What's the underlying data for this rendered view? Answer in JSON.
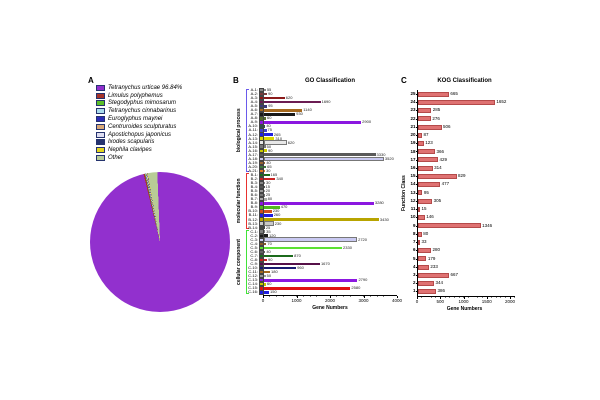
{
  "figure": {
    "background": "#ffffff"
  },
  "chart_data": [
    {
      "id": "species-distribution-pie",
      "type": "pie",
      "panel_label": "A",
      "legend_position": "top-left",
      "slices": [
        {
          "label": "Tetranychus urticae 96.84%",
          "pct_label": "96.84%",
          "color": "#9230CE",
          "deg": 346.4
        },
        {
          "label": "Limulus polyphemus",
          "color": "#A5342A",
          "deg": 1.1
        },
        {
          "label": "Stegodyphus mimosarum",
          "color": "#5BBF28",
          "deg": 0.4
        },
        {
          "label": "Tetranychus cinnabarinus",
          "color": "#ABDCED",
          "deg": 0.3
        },
        {
          "label": "Euroglyphus maynei",
          "color": "#2B2BB5",
          "deg": 0.3
        },
        {
          "label": "Centruroides sculpturatus",
          "color": "#D8A878",
          "deg": 0.5
        },
        {
          "label": "Apostichopus japonicus",
          "color": "#DEDEF2",
          "deg": 0.3
        },
        {
          "label": "Ixodes scapularis",
          "color": "#25336E",
          "deg": 0.3
        },
        {
          "label": "Nephila clavipes",
          "color": "#E3D61C",
          "deg": 0.3
        },
        {
          "label": "Other",
          "color": "#B8CC96",
          "deg": 7.9
        }
      ]
    },
    {
      "id": "go-classification",
      "type": "bar",
      "orientation": "horizontal",
      "panel_label": "B",
      "title": "GO Classification",
      "xlabel": "Gene Numbers",
      "xlim": [
        0,
        4000
      ],
      "xticks": [
        0,
        1000,
        2000,
        3000,
        4000
      ],
      "groups": [
        {
          "name": "biological process",
          "bracket_color": "#6A5AEB",
          "terms": [
            {
              "label": "A-1",
              "value": 55,
              "color": "#8A8A8A"
            },
            {
              "label": "A-2",
              "value": 90,
              "color": "#7A3B3B"
            },
            {
              "label": "A-3",
              "value": 620,
              "color": "#8B1A1A"
            },
            {
              "label": "A-4",
              "value": 1690,
              "color": "#6B1C52"
            },
            {
              "label": "A-5",
              "value": 95,
              "color": "#3B3B7A"
            },
            {
              "label": "A-6",
              "value": 1140,
              "color": "#A5691E"
            },
            {
              "label": "A-7",
              "value": 930,
              "color": "#1A1A1A"
            },
            {
              "label": "A-8",
              "value": 60,
              "color": "#556B2F"
            },
            {
              "label": "A-9",
              "value": 2900,
              "color": "#8B17E0"
            },
            {
              "label": "A-10",
              "value": 40,
              "color": "#2F4F4F"
            },
            {
              "label": "A-11",
              "value": 75,
              "color": "#4444CC"
            },
            {
              "label": "A-12",
              "value": 265,
              "color": "#2020E0"
            },
            {
              "label": "A-13",
              "value": 310,
              "color": "#DCD800"
            },
            {
              "label": "A-14",
              "value": 620,
              "color": "#E8E8E8"
            },
            {
              "label": "A-15",
              "value": 50,
              "color": "#777777"
            },
            {
              "label": "A-16",
              "value": 90,
              "color": "#C8C800"
            },
            {
              "label": "A-17",
              "value": 3330,
              "color": "#5A5A5A"
            },
            {
              "label": "A-18",
              "value": 3520,
              "color": "#C9C9F2"
            },
            {
              "label": "A-19",
              "value": 40,
              "color": "#996633"
            },
            {
              "label": "A-20",
              "value": 65,
              "color": "#3B7A3B"
            },
            {
              "label": "A-21",
              "value": 30,
              "color": "#E07820"
            }
          ]
        },
        {
          "name": "molecular function",
          "bracket_color": "#E8312F",
          "terms": [
            {
              "label": "B-1",
              "value": 165,
              "color": "#1C6B1C"
            },
            {
              "label": "B-2",
              "value": 340,
              "color": "#C92222"
            },
            {
              "label": "B-3",
              "value": 30,
              "color": "#888888"
            },
            {
              "label": "B-4",
              "value": 15,
              "color": "#555555"
            },
            {
              "label": "B-5",
              "value": 20,
              "color": "#999999"
            },
            {
              "label": "B-6",
              "value": 25,
              "color": "#777777"
            },
            {
              "label": "B-7",
              "value": 80,
              "color": "#AAAAAA"
            },
            {
              "label": "B-8",
              "value": 3280,
              "color": "#8B17E0"
            },
            {
              "label": "B-9",
              "value": 470,
              "color": "#52B81E"
            },
            {
              "label": "B-10",
              "value": 230,
              "color": "#D2501E"
            },
            {
              "label": "B-11",
              "value": 260,
              "color": "#2020E0"
            },
            {
              "label": "B-12",
              "value": 3430,
              "color": "#B8A400"
            },
            {
              "label": "B-13",
              "value": 230,
              "color": "#C9C9C9"
            },
            {
              "label": "B-14",
              "value": 25,
              "color": "#444444"
            }
          ]
        },
        {
          "name": "cellular component",
          "bracket_color": "#41E339",
          "terms": [
            {
              "label": "C-1",
              "value": 35,
              "color": "#808080"
            },
            {
              "label": "C-2",
              "value": 120,
              "color": "#1A1A1A"
            },
            {
              "label": "C-3",
              "value": 2720,
              "color": "#C9C9F2"
            },
            {
              "label": "C-4",
              "value": 70,
              "color": "#8A5A2A"
            },
            {
              "label": "C-5",
              "value": 2330,
              "color": "#5CE033"
            },
            {
              "label": "C-6",
              "value": 40,
              "color": "#666666"
            },
            {
              "label": "C-7",
              "value": 870,
              "color": "#1C6B1C"
            },
            {
              "label": "C-8",
              "value": 90,
              "color": "#C92222"
            },
            {
              "label": "C-9",
              "value": 1670,
              "color": "#561048"
            },
            {
              "label": "C-10",
              "value": 960,
              "color": "#1A1A70"
            },
            {
              "label": "C-11",
              "value": 180,
              "color": "#A5691E"
            },
            {
              "label": "C-12",
              "value": 50,
              "color": "#999999"
            },
            {
              "label": "C-13",
              "value": 2790,
              "color": "#8B17E0"
            },
            {
              "label": "C-14",
              "value": 60,
              "color": "#C8C800"
            },
            {
              "label": "C-15",
              "value": 2580,
              "color": "#E01111"
            },
            {
              "label": "C-16",
              "value": 150,
              "color": "#2020E0"
            }
          ]
        }
      ]
    },
    {
      "id": "kog-classification",
      "type": "bar",
      "orientation": "horizontal",
      "panel_label": "C",
      "title": "KOG Classification",
      "xlabel": "Gene Numbers",
      "ylabel": "Function Class",
      "xlim": [
        0,
        2000
      ],
      "xticks": [
        0,
        500,
        1000,
        1500,
        2000
      ],
      "bar_color": "#DF7272",
      "bar_border": "#B54A4A",
      "categories": [
        "25",
        "24",
        "23",
        "22",
        "21",
        "20",
        "19",
        "18",
        "17",
        "16",
        "15",
        "14",
        "13",
        "12",
        "11",
        "10",
        "9",
        "8",
        "7",
        "6",
        "5",
        "4",
        "3",
        "2",
        "1"
      ],
      "values": [
        665,
        1652,
        285,
        276,
        506,
        87,
        123,
        366,
        429,
        314,
        829,
        477,
        95,
        305,
        15,
        146,
        1346,
        80,
        33,
        280,
        179,
        233,
        667,
        344,
        386
      ]
    }
  ]
}
